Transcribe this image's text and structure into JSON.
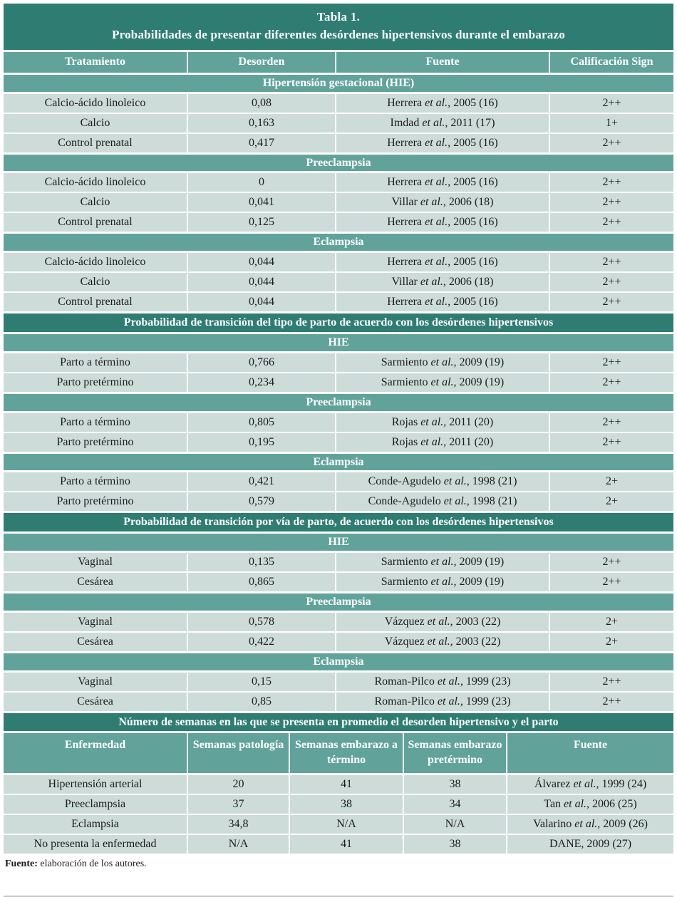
{
  "colors": {
    "dark_teal": "#2f7c73",
    "medium_teal": "#61a39b",
    "row_bg": "#cddcd8",
    "text": "#1b1b1b"
  },
  "title": {
    "line1": "Tabla 1.",
    "line2": "Probabilidades de presentar diferentes desórdenes hipertensivos durante el embarazo"
  },
  "part1": {
    "headers": [
      "Tratamiento",
      "Desorden",
      "Fuente",
      "Calificación Sign"
    ],
    "blocks": [
      {
        "heading": "Hipertensión gestacional (HIE)",
        "rows": [
          {
            "c1": "Calcio-ácido linoleico",
            "c2": "0,08",
            "src": {
              "a": "Herrera ",
              "i": "et al.,",
              "b": " 2005 (16)"
            },
            "c4": "2++"
          },
          {
            "c1": "Calcio",
            "c2": "0,163",
            "src": {
              "a": "Imdad ",
              "i": "et al.,",
              "b": " 2011 (17)"
            },
            "c4": "1+"
          },
          {
            "c1": "Control prenatal",
            "c2": "0,417",
            "src": {
              "a": "Herrera ",
              "i": "et al.,",
              "b": " 2005 (16)"
            },
            "c4": "2++"
          }
        ]
      },
      {
        "heading": "Preeclampsia",
        "rows": [
          {
            "c1": "Calcio-ácido linoleico",
            "c2": "0",
            "src": {
              "a": "Herrera ",
              "i": "et al.,",
              "b": " 2005 (16)"
            },
            "c4": "2++"
          },
          {
            "c1": "Calcio",
            "c2": "0,041",
            "src": {
              "a": "Villar ",
              "i": "et al.,",
              "b": " 2006 (18)"
            },
            "c4": "2++"
          },
          {
            "c1": "Control prenatal",
            "c2": "0,125",
            "src": {
              "a": "Herrera ",
              "i": "et al.,",
              "b": " 2005 (16)"
            },
            "c4": "2++"
          }
        ]
      },
      {
        "heading": "Eclampsia",
        "rows": [
          {
            "c1": "Calcio-ácido linoleico",
            "c2": "0,044",
            "src": {
              "a": "Herrera ",
              "i": "et al.,",
              "b": " 2005 (16)"
            },
            "c4": "2++"
          },
          {
            "c1": "Calcio",
            "c2": "0,044",
            "src": {
              "a": "Villar ",
              "i": "et al.,",
              "b": " 2006 (18)"
            },
            "c4": "2++"
          },
          {
            "c1": "Control prenatal",
            "c2": "0,044",
            "src": {
              "a": "Herrera ",
              "i": "et al.,",
              "b": " 2005 (16)"
            },
            "c4": "2++"
          }
        ]
      }
    ]
  },
  "part2": {
    "divider": "Probabilidad de transición del tipo de parto de acuerdo con los desórdenes hipertensivos",
    "blocks": [
      {
        "heading": "HIE",
        "rows": [
          {
            "c1": "Parto a término",
            "c2": "0,766",
            "src": {
              "a": "Sarmiento ",
              "i": "et al.,",
              "b": " 2009 (19)"
            },
            "c4": "2++"
          },
          {
            "c1": "Parto pretérmino",
            "c2": "0,234",
            "src": {
              "a": "Sarmiento ",
              "i": "et al.,",
              "b": " 2009 (19)"
            },
            "c4": "2++"
          }
        ]
      },
      {
        "heading": "Preeclampsia",
        "rows": [
          {
            "c1": "Parto a término",
            "c2": "0,805",
            "src": {
              "a": "Rojas ",
              "i": "et al.,",
              "b": " 2011 (20)"
            },
            "c4": "2++"
          },
          {
            "c1": "Parto pretérmino",
            "c2": "0,195",
            "src": {
              "a": "Rojas ",
              "i": "et al.,",
              "b": " 2011 (20)"
            },
            "c4": "2++"
          }
        ]
      },
      {
        "heading": "Eclampsia",
        "rows": [
          {
            "c1": "Parto a término",
            "c2": "0,421",
            "src": {
              "a": "Conde-Agudelo ",
              "i": "et al.,",
              "b": " 1998 (21)"
            },
            "c4": "2+"
          },
          {
            "c1": "Parto pretérmino",
            "c2": "0,579",
            "src": {
              "a": "Conde-Agudelo ",
              "i": "et al.,",
              "b": " 1998 (21)"
            },
            "c4": "2+"
          }
        ]
      }
    ]
  },
  "part3": {
    "divider": "Probabilidad de transición por vía de parto, de acuerdo con los desórdenes hipertensivos",
    "blocks": [
      {
        "heading": "HIE",
        "rows": [
          {
            "c1": "Vaginal",
            "c2": "0,135",
            "src": {
              "a": "Sarmiento ",
              "i": "et al.,",
              "b": " 2009 (19)"
            },
            "c4": "2++"
          },
          {
            "c1": "Cesárea",
            "c2": "0,865",
            "src": {
              "a": "Sarmiento ",
              "i": "et al.,",
              "b": " 2009 (19)"
            },
            "c4": "2++"
          }
        ]
      },
      {
        "heading": "Preeclampsia",
        "rows": [
          {
            "c1": "Vaginal",
            "c2": "0,578",
            "src": {
              "a": "Vázquez ",
              "i": "et al.,",
              "b": " 2003 (22)"
            },
            "c4": "2+"
          },
          {
            "c1": "Cesárea",
            "c2": "0,422",
            "src": {
              "a": "Vázquez ",
              "i": "et al.,",
              "b": " 2003 (22)"
            },
            "c4": "2+"
          }
        ]
      },
      {
        "heading": "Eclampsia",
        "rows": [
          {
            "c1": "Vaginal",
            "c2": "0,15",
            "src": {
              "a": "Roman-Pilco ",
              "i": "et al.,",
              "b": " 1999 (23)"
            },
            "c4": "2++"
          },
          {
            "c1": "Cesárea",
            "c2": "0,85",
            "src": {
              "a": "Roman-Pilco ",
              "i": "et al.,",
              "b": " 1999 (23)"
            },
            "c4": "2++"
          }
        ]
      }
    ]
  },
  "part4": {
    "divider": "Número de semanas en las que se presenta en promedio el desorden hipertensivo y el parto",
    "headers": [
      "Enfermedad",
      "Semanas patología",
      "Semanas embarazo a término",
      "Semanas embarazo pretérmino",
      "Fuente"
    ],
    "rows": [
      {
        "c1": "Hipertensión arterial",
        "c2": "20",
        "c3": "41",
        "c4": "38",
        "src": {
          "a": "Álvarez ",
          "i": "et al.,",
          "b": " 1999 (24)"
        }
      },
      {
        "c1": "Preeclampsia",
        "c2": "37",
        "c3": "38",
        "c4": "34",
        "src": {
          "a": "Tan ",
          "i": "et al.,",
          "b": " 2006 (25)"
        }
      },
      {
        "c1": "Eclampsia",
        "c2": "34,8",
        "c3": "N/A",
        "c4": "N/A",
        "src": {
          "a": "Valarino ",
          "i": "et al.,",
          "b": " 2009 (26)"
        }
      },
      {
        "c1": "No presenta la enfermedad",
        "c2": "N/A",
        "c3": "41",
        "c4": "38",
        "src": {
          "a": "DANE, 2009 (27)",
          "i": "",
          "b": ""
        }
      }
    ]
  },
  "footer": {
    "label": "Fuente:",
    "text": " elaboración de los autores."
  }
}
